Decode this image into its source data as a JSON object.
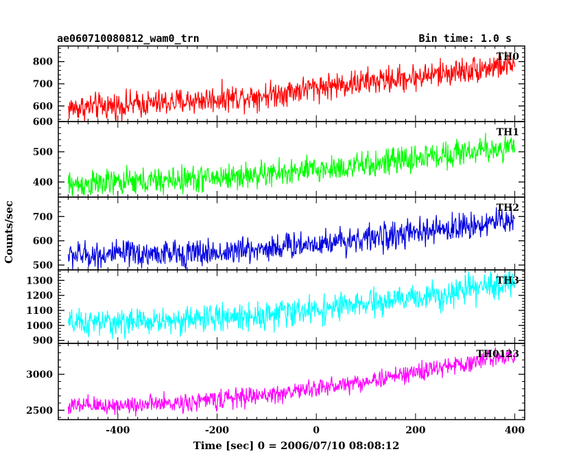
{
  "header": {
    "title": "ae060710080812_wam0_trn",
    "bin_time": "Bin time: 1.0 s"
  },
  "chart_data": {
    "type": "line",
    "xlabel": "Time [sec] 0 = 2006/07/10 08:08:12",
    "ylabel": "Counts/sec",
    "xlim": [
      -520,
      420
    ],
    "xticks": [
      -400,
      -200,
      0,
      200,
      400
    ],
    "x_range": [
      -500,
      400
    ],
    "panels": [
      {
        "name": "TH0",
        "color": "#ff0000",
        "ylim": [
          530,
          870
        ],
        "yticks": [
          600,
          700,
          800
        ],
        "trend": [
          {
            "x": -500,
            "y": 590
          },
          {
            "x": -300,
            "y": 615
          },
          {
            "x": -100,
            "y": 650
          },
          {
            "x": 0,
            "y": 685
          },
          {
            "x": 200,
            "y": 730
          },
          {
            "x": 400,
            "y": 790
          }
        ],
        "noise": 30
      },
      {
        "name": "TH1",
        "color": "#00ff00",
        "ylim": [
          350,
          600
        ],
        "yticks": [
          400,
          500,
          600
        ],
        "trend": [
          {
            "x": -500,
            "y": 390
          },
          {
            "x": -300,
            "y": 405
          },
          {
            "x": -100,
            "y": 425
          },
          {
            "x": 100,
            "y": 455
          },
          {
            "x": 300,
            "y": 500
          },
          {
            "x": 400,
            "y": 515
          }
        ],
        "noise": 22
      },
      {
        "name": "TH2",
        "color": "#0000e0",
        "ylim": [
          480,
          780
        ],
        "yticks": [
          500,
          600,
          700
        ],
        "trend": [
          {
            "x": -500,
            "y": 540
          },
          {
            "x": -200,
            "y": 550
          },
          {
            "x": 0,
            "y": 590
          },
          {
            "x": 200,
            "y": 630
          },
          {
            "x": 400,
            "y": 690
          }
        ],
        "noise": 28
      },
      {
        "name": "TH3",
        "color": "#00ffff",
        "ylim": [
          880,
          1370
        ],
        "yticks": [
          900,
          1000,
          1100,
          1200,
          1300
        ],
        "trend": [
          {
            "x": -500,
            "y": 1010
          },
          {
            "x": -300,
            "y": 1030
          },
          {
            "x": -100,
            "y": 1070
          },
          {
            "x": 100,
            "y": 1140
          },
          {
            "x": 300,
            "y": 1230
          },
          {
            "x": 400,
            "y": 1290
          }
        ],
        "noise": 45
      },
      {
        "name": "TH0123",
        "color": "#ff00ff",
        "ylim": [
          2370,
          3430
        ],
        "yticks": [
          2500,
          3000
        ],
        "trend": [
          {
            "x": -500,
            "y": 2550
          },
          {
            "x": -300,
            "y": 2590
          },
          {
            "x": -100,
            "y": 2710
          },
          {
            "x": 100,
            "y": 2900
          },
          {
            "x": 300,
            "y": 3150
          },
          {
            "x": 400,
            "y": 3290
          }
        ],
        "noise": 65
      }
    ]
  }
}
